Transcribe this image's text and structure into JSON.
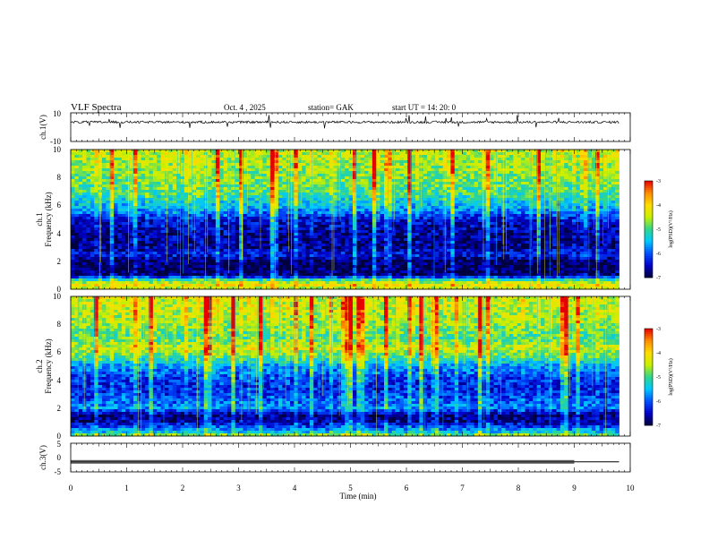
{
  "header": {
    "title": "VLF Spectra",
    "date": "Oct. 4 , 2025",
    "station": "station= GAK",
    "start": "start UT = 14: 20: 0"
  },
  "chart_data": [
    {
      "type": "line",
      "panel": "ch1-waveform",
      "ylabel": "ch.1(V)",
      "ylim": [
        -10,
        10
      ],
      "yticks": [
        "10",
        "-10"
      ],
      "xlim": [
        0,
        9.8
      ],
      "baseline": 3.5,
      "color": "#000000",
      "note_values": "waveform fluctuating around 3 to 4 V with spikes to about 6 and 0 V"
    },
    {
      "type": "heatmap",
      "panel": "ch1-spectrogram",
      "ylabel_channel": "ch.1",
      "ylabel": "Frequency (kHz)",
      "ylim": [
        0,
        10
      ],
      "yticks": [
        "10",
        "8",
        "6",
        "4",
        "2",
        "0"
      ],
      "xlim": [
        0,
        9.8
      ],
      "profile_khz": [
        0,
        0.3,
        0.6,
        1.0,
        1.5,
        2.0,
        2.5,
        3.0,
        4.0,
        5.0,
        5.5,
        6.0,
        7.0,
        8.0,
        9.0,
        10.0
      ],
      "profile_logpsd": [
        -4.6,
        -4.2,
        -4.8,
        -6.8,
        -6.9,
        -6.9,
        -6.3,
        -6.7,
        -6.7,
        -6.4,
        -5.9,
        -5.5,
        -5.0,
        -4.8,
        -4.6,
        -4.5
      ],
      "colorbar": {
        "label": "log(PSD)(V²/Hz)",
        "range": [
          -7,
          -3
        ],
        "ticks": [
          "-3",
          "-4",
          "-5",
          "-6",
          "-7"
        ]
      }
    },
    {
      "type": "heatmap",
      "panel": "ch2-spectrogram",
      "ylabel_channel": "ch.2",
      "ylabel": "Frequency (kHz)",
      "ylim": [
        0,
        10
      ],
      "yticks": [
        "10",
        "8",
        "6",
        "4",
        "2",
        "0"
      ],
      "xlim": [
        0,
        9.8
      ],
      "profile_khz": [
        0,
        0.3,
        1.0,
        1.5,
        2.0,
        2.5,
        3.0,
        3.5,
        4.0,
        5.0,
        5.7,
        6.3,
        7.0,
        8.0,
        9.0,
        10.0
      ],
      "profile_logpsd": [
        -4.5,
        -5.5,
        -6.6,
        -6.8,
        -5.8,
        -6.0,
        -6.2,
        -6.3,
        -6.2,
        -5.7,
        -5.0,
        -4.4,
        -5.0,
        -4.7,
        -4.5,
        -4.4
      ],
      "colorbar": {
        "label": "log(PSD)(V²/Hz)",
        "range": [
          -7,
          -3
        ],
        "ticks": [
          "-3",
          "-4",
          "-5",
          "-6",
          "-7"
        ]
      }
    },
    {
      "type": "line",
      "panel": "ch3-waveform",
      "ylabel": "ch.3(V)",
      "ylim": [
        -5,
        5
      ],
      "yticks": [
        "5",
        "0",
        "-5"
      ],
      "xlim": [
        0,
        9.8
      ],
      "x": [
        0,
        9.0,
        9.0,
        9.8
      ],
      "y": [
        -1.5,
        -1.5,
        -1.5,
        -1.5
      ],
      "note_values": "flat at about -1.5 V, dense marker pattern until 9.0 min",
      "color": "#000000"
    }
  ],
  "xaxis": {
    "label": "Time (min)",
    "range": [
      0,
      10
    ],
    "ticks": [
      "0",
      "1",
      "2",
      "3",
      "4",
      "5",
      "6",
      "7",
      "8",
      "9",
      "10"
    ]
  },
  "colors": {
    "cmap": [
      "#00003c",
      "#0000c8",
      "#0050ff",
      "#00c8ff",
      "#32d68c",
      "#c8f000",
      "#ffdc00",
      "#ff8c00",
      "#e60000"
    ]
  }
}
